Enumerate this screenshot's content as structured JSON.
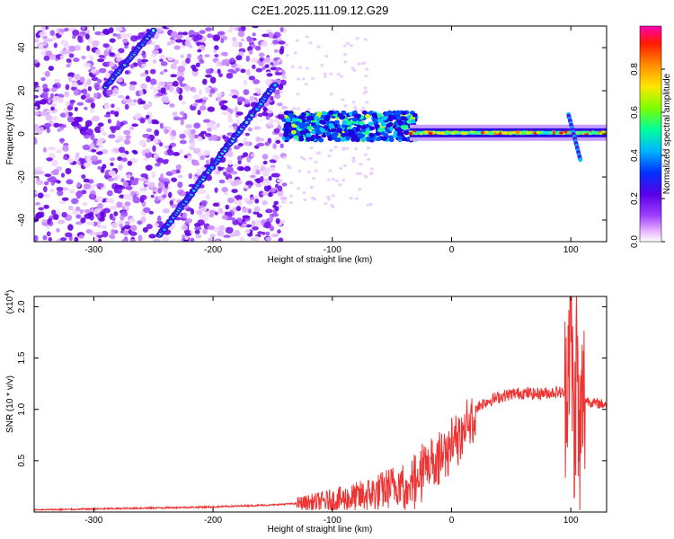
{
  "chart_data": [
    {
      "type": "heatmap",
      "title": "C2E1.2025.111.09.12.G29",
      "xlabel": "Height of straight line (km)",
      "ylabel": "Frequency (Hz)",
      "xlim": [
        -350,
        130
      ],
      "ylim": [
        -50,
        50
      ],
      "xticks": [
        -300,
        -200,
        -100,
        0,
        100
      ],
      "yticks": [
        -40,
        -20,
        0,
        20,
        40
      ],
      "colorbar": {
        "label": "Normalized spectral amplitude",
        "range": [
          0,
          1
        ],
        "ticks": [
          "0.0",
          "0.2",
          "0.4",
          "0.6",
          "0.8"
        ],
        "colors": [
          "#ffffff",
          "#e0a8ff",
          "#9d30ff",
          "#5a00e0",
          "#0044ff",
          "#00c8ff",
          "#00ff90",
          "#8cff00",
          "#ffe600",
          "#ff8c00",
          "#ff0000",
          "#ff00aa"
        ]
      },
      "features": [
        {
          "name": "noise",
          "x": [
            -350,
            -140
          ],
          "y": [
            -50,
            50
          ]
        },
        {
          "name": "streak-1",
          "x": [
            -290,
            -250
          ],
          "y": [
            22,
            48
          ]
        },
        {
          "name": "streak-2",
          "x": [
            -245,
            -148
          ],
          "y": [
            -47,
            23
          ]
        },
        {
          "name": "band",
          "x": [
            -140,
            -30
          ],
          "y": [
            -3,
            10
          ]
        },
        {
          "name": "carrier",
          "x": [
            -35,
            130
          ],
          "y": [
            -1,
            2
          ]
        },
        {
          "name": "spike",
          "x": [
            98,
            108
          ],
          "y": [
            -12,
            9
          ]
        }
      ]
    },
    {
      "type": "line",
      "xlabel": "Height of straight line (km)",
      "ylabel": "SNR (10 * v/v)",
      "yunit": "(x10^4)",
      "xlim": [
        -350,
        130
      ],
      "ylim": [
        0,
        2.1
      ],
      "xticks": [
        -300,
        -200,
        -100,
        0,
        100
      ],
      "yticks": [
        0.5,
        1.0,
        1.5,
        2.0
      ],
      "color": "#ee3333",
      "series": [
        {
          "x": [
            -350,
            -300,
            -250,
            -200,
            -150,
            -120,
            -100,
            -80,
            -60,
            -40,
            -30,
            -20,
            -10,
            0,
            10,
            20,
            30,
            40,
            50,
            60,
            70,
            80,
            90,
            95,
            100,
            103,
            105,
            107,
            110,
            120,
            130
          ],
          "y": [
            0.02,
            0.03,
            0.04,
            0.05,
            0.07,
            0.09,
            0.11,
            0.14,
            0.2,
            0.3,
            0.45,
            0.55,
            0.62,
            0.75,
            0.9,
            1.02,
            1.08,
            1.12,
            1.15,
            1.16,
            1.15,
            1.16,
            1.17,
            1.15,
            1.9,
            0.6,
            1.75,
            0.5,
            1.1,
            1.06,
            1.05
          ]
        }
      ]
    }
  ],
  "colorbar_tick_labels": [
    "0.0",
    "0.2",
    "0.4",
    "0.6",
    "0.8"
  ],
  "multiplier_label": "(x10"
}
